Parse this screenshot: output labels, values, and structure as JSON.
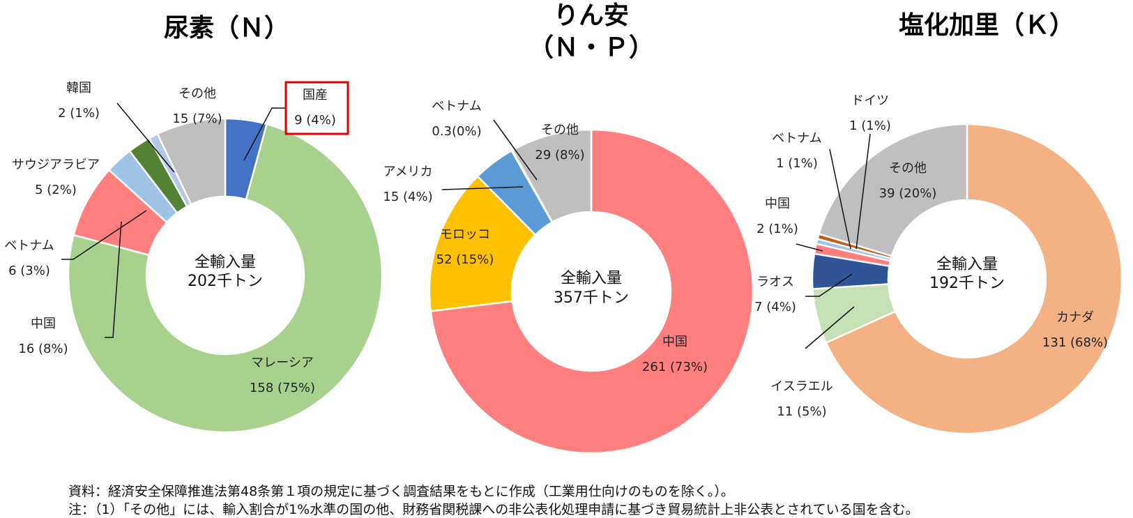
{
  "chart_data": [
    {
      "type": "pie",
      "title": "尿素（Ｎ）",
      "center_label": [
        "全輸入量",
        "202千トン"
      ],
      "slices": [
        {
          "name": "国産",
          "value": 9,
          "percent": "4%",
          "value_text": "9 (4%)",
          "color": "#4472C4",
          "highlight": true
        },
        {
          "name": "マレーシア",
          "value": 158,
          "percent": "75%",
          "value_text": "158 (75%)",
          "color": "#A9D18E"
        },
        {
          "name": "中国",
          "value": 16,
          "percent": "8%",
          "value_text": "16 (8%)",
          "color": "#FF7F7F"
        },
        {
          "name": "ベトナム",
          "value": 6,
          "percent": "3%",
          "value_text": "6 (3%)",
          "color": "#9DC3E6"
        },
        {
          "name": "サウジアラビア",
          "value": 5,
          "percent": "2%",
          "value_text": "5 (2%)",
          "color": "#548235"
        },
        {
          "name": "韓国",
          "value": 2,
          "percent": "1%",
          "value_text": "2 (1%)",
          "color": "#B4C7E7"
        },
        {
          "name": "その他",
          "value": 15,
          "percent": "7%",
          "value_text": "15 (7%)",
          "color": "#BFBFBF"
        }
      ]
    },
    {
      "type": "pie",
      "title": [
        "りん安",
        "（Ｎ・Ｐ）"
      ],
      "center_label": [
        "全輸入量",
        "357千トン"
      ],
      "slices": [
        {
          "name": "中国",
          "value": 261,
          "percent": "73%",
          "value_text": "261 (73%)",
          "color": "#FF7F7F"
        },
        {
          "name": "モロッコ",
          "value": 52,
          "percent": "15%",
          "value_text": "52 (15%)",
          "color": "#FFC000"
        },
        {
          "name": "アメリカ",
          "value": 15,
          "percent": "4%",
          "value_text": "15 (4%)",
          "color": "#5B9BD5"
        },
        {
          "name": "ベトナム",
          "value": 0.3,
          "percent": "0%",
          "value_text": "0.3(0%)",
          "color": "#A5A5A5"
        },
        {
          "name": "その他",
          "value": 29,
          "percent": "8%",
          "value_text": "29 (8%)",
          "color": "#BFBFBF"
        }
      ]
    },
    {
      "type": "pie",
      "title": "塩化加里（Ｋ）",
      "center_label": [
        "全輸入量",
        "192千トン"
      ],
      "slices": [
        {
          "name": "カナダ",
          "value": 131,
          "percent": "68%",
          "value_text": "131 (68%)",
          "color": "#F4B183"
        },
        {
          "name": "イスラエル",
          "value": 11,
          "percent": "5%",
          "value_text": "11 (5%)",
          "color": "#C5E0B4"
        },
        {
          "name": "ラオス",
          "value": 7,
          "percent": "4%",
          "value_text": "7 (4%)",
          "color": "#2F5597"
        },
        {
          "name": "中国",
          "value": 2,
          "percent": "1%",
          "value_text": "2 (1%)",
          "color": "#FF7F7F"
        },
        {
          "name": "ベトナム",
          "value": 1,
          "percent": "1%",
          "value_text": "1 (1%)",
          "color": "#9DC3E6"
        },
        {
          "name": "ドイツ",
          "value": 1,
          "percent": "1%",
          "value_text": "1 (1%)",
          "color": "#C55A11"
        },
        {
          "name": "その他",
          "value": 39,
          "percent": "20%",
          "value_text": "39 (20%)",
          "color": "#BFBFBF"
        }
      ]
    }
  ],
  "footnotes": [
    "資料：経済安全保障推進法第48条第１項の規定に基づく調査結果をもとに作成（工業用仕向けのものを除く。）。",
    "注：（1）「その他」には、輸入割合が1%水準の国の他、財務省関税課への非公表化処理申請に基づき貿易統計上非公表とされている国を含む。"
  ]
}
